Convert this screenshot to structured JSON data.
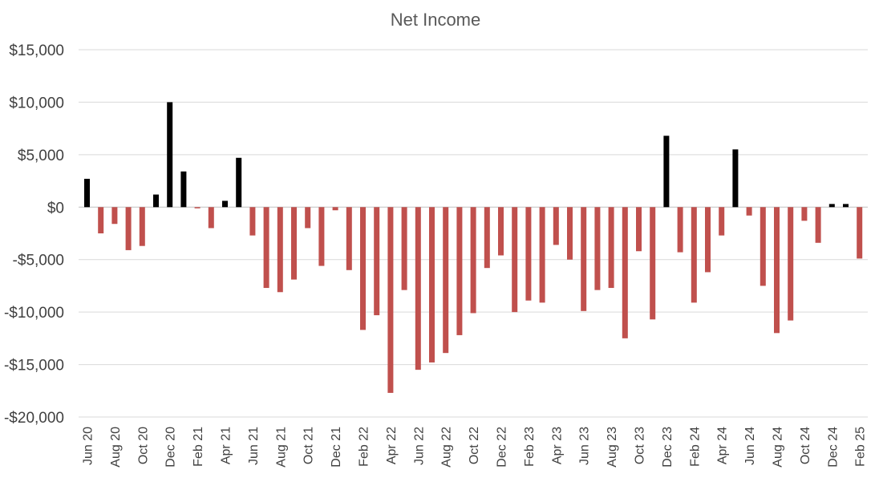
{
  "chart_data": {
    "type": "bar",
    "title": "Net Income",
    "xlabel": "",
    "ylabel": "",
    "ylim": [
      -20000,
      15000
    ],
    "yticks": [
      15000,
      10000,
      5000,
      0,
      -5000,
      -10000,
      -15000,
      -20000
    ],
    "ytick_labels": [
      "$15,000",
      "$10,000",
      "$5,000",
      "$0",
      "-$5,000",
      "-$10,000",
      "-$15,000",
      "-$20,000"
    ],
    "grid": true,
    "legend": "none",
    "colors": {
      "positive": "#000000",
      "negative": "#c0504d",
      "grid": "#d9d9d9",
      "axis": "#bfbfbf"
    },
    "categories": [
      "Jun 20",
      "Jul 20",
      "Aug 20",
      "Sep 20",
      "Oct 20",
      "Nov 20",
      "Dec 20",
      "Jan 21",
      "Feb 21",
      "Mar 21",
      "Apr 21",
      "May 21",
      "Jun 21",
      "Jul 21",
      "Aug 21",
      "Sep 21",
      "Oct 21",
      "Nov 21",
      "Dec 21",
      "Jan 22",
      "Feb 22",
      "Mar 22",
      "Apr 22",
      "May 22",
      "Jun 22",
      "Jul 22",
      "Aug 22",
      "Sep 22",
      "Oct 22",
      "Nov 22",
      "Dec 22",
      "Jan 23",
      "Feb 23",
      "Mar 23",
      "Apr 23",
      "May 23",
      "Jun 23",
      "Jul 23",
      "Aug 23",
      "Sep 23",
      "Oct 23",
      "Nov 23",
      "Dec 23",
      "Jan 24",
      "Feb 24",
      "Mar 24",
      "Apr 24",
      "May 24",
      "Jun 24",
      "Jul 24",
      "Aug 24",
      "Sep 24",
      "Oct 24",
      "Nov 24",
      "Dec 24",
      "Jan 25",
      "Feb 25"
    ],
    "visible_tick_labels": [
      "Jun 20",
      "Aug 20",
      "Oct 20",
      "Dec 20",
      "Feb 21",
      "Apr 21",
      "Jun 21",
      "Aug 21",
      "Oct 21",
      "Dec 21",
      "Feb 22",
      "Apr 22",
      "Jun 22",
      "Aug 22",
      "Oct 22",
      "Dec 22",
      "Feb 23",
      "Apr 23",
      "Jun 23",
      "Aug 23",
      "Oct 23",
      "Dec 23",
      "Feb 24",
      "Apr 24",
      "Jun 24",
      "Aug 24",
      "Oct 24",
      "Dec 24",
      "Feb 25"
    ],
    "values": [
      2700,
      -2500,
      -1600,
      -4100,
      -3700,
      1200,
      10000,
      3400,
      -100,
      -2000,
      600,
      4700,
      -2700,
      -7700,
      -8100,
      -6900,
      -2000,
      -5600,
      -300,
      -6000,
      -11700,
      -10300,
      -17700,
      -7900,
      -15500,
      -14800,
      -13900,
      -12200,
      -10100,
      -5800,
      -4600,
      -10000,
      -8900,
      -9100,
      -3600,
      -5000,
      -9900,
      -7900,
      -7700,
      -12500,
      -4200,
      -10700,
      6800,
      -4300,
      -9100,
      -6200,
      -2700,
      5500,
      -800,
      -7500,
      -12000,
      -10800,
      -1300,
      -3400,
      300,
      300,
      -4900
    ]
  }
}
